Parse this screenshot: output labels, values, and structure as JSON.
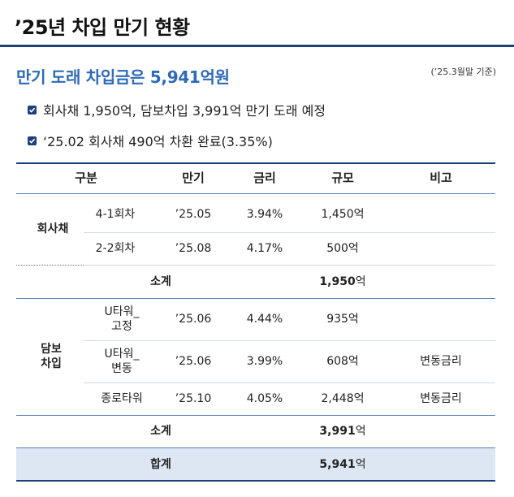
{
  "page": {
    "title": "’25년 차입 만기 현황",
    "subtitle": "만기 도래 차입금은 5,941억원",
    "basis": "(’25.3월말 기준)",
    "bullets": [
      "회사채 1,950억, 담보차입 3,991억 만기 도래 예정",
      "‘25.02 회사채 490억 차환 완료(3.35%)"
    ]
  },
  "table": {
    "headers": [
      "구분",
      "만기",
      "금리",
      "규모",
      "비고"
    ],
    "groups": [
      {
        "label": "회사채",
        "rows": [
          {
            "name": "4-1회차",
            "maturity": "’25.05",
            "rate": "3.94%",
            "size": "1,450억",
            "note": ""
          },
          {
            "name": "2-2회차",
            "maturity": "’25.08",
            "rate": "4.17%",
            "size": "500억",
            "note": ""
          }
        ],
        "subtotal_label": "소계",
        "subtotal_num": "1,950",
        "subtotal_unit": "억"
      },
      {
        "label_line1": "담보",
        "label_line2": "차입",
        "rows": [
          {
            "name_line1": "U타워_",
            "name_line2": "고정",
            "maturity": "’25.06",
            "rate": "4.44%",
            "size": "935억",
            "note": ""
          },
          {
            "name_line1": "U타워_",
            "name_line2": "변동",
            "maturity": "’25.06",
            "rate": "3.99%",
            "size": "608억",
            "note": "변동금리"
          },
          {
            "name": "종로타워",
            "maturity": "’25.10",
            "rate": "4.05%",
            "size": "2,448억",
            "note": "변동금리"
          }
        ],
        "subtotal_label": "소계",
        "subtotal_num": "3,991",
        "subtotal_unit": "억"
      }
    ],
    "total_label": "합계",
    "total_num": "5,941",
    "total_unit": "억"
  },
  "colors": {
    "navy": "#1b3f7a",
    "accent_blue": "#2e6ab8",
    "total_bg": "#dde7f4"
  }
}
